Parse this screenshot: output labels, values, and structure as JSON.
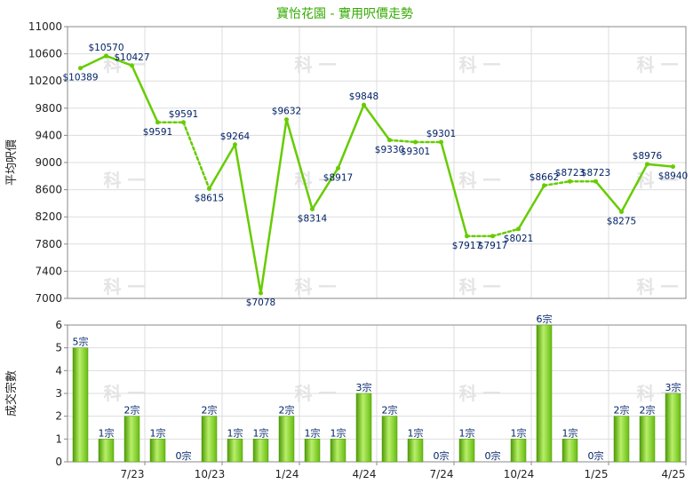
{
  "chart_data": [
    {
      "type": "line",
      "title": "寶怡花園 - 實用呎價走勢",
      "ylabel": "平均呎價",
      "xlabel": "",
      "ylim": [
        7000,
        11000
      ],
      "yticks": [
        7000,
        7400,
        7800,
        8200,
        8600,
        9000,
        9400,
        9800,
        10200,
        10600,
        11000
      ],
      "grid": true,
      "line_color": "#66cc00",
      "point_color": "#66cc00",
      "label_color": "#002266",
      "points": [
        {
          "x": 1,
          "y": 10389,
          "label": "$10389"
        },
        {
          "x": 2,
          "y": 10570,
          "label": "$10570"
        },
        {
          "x": 3,
          "y": 10427,
          "label": "$10427"
        },
        {
          "x": 4,
          "y": 9591,
          "label": "$9591"
        },
        {
          "x": 5,
          "y": 9591,
          "label": "$9591",
          "interpolated": true
        },
        {
          "x": 6,
          "y": 8615,
          "label": "$8615"
        },
        {
          "x": 7,
          "y": 9264,
          "label": "$9264"
        },
        {
          "x": 8,
          "y": 7078,
          "label": "$7078"
        },
        {
          "x": 9,
          "y": 9632,
          "label": "$9632"
        },
        {
          "x": 10,
          "y": 8314,
          "label": "$8314"
        },
        {
          "x": 11,
          "y": 8917,
          "label": "$8917"
        },
        {
          "x": 12,
          "y": 9848,
          "label": "$9848"
        },
        {
          "x": 13,
          "y": 9330,
          "label": "$9330"
        },
        {
          "x": 14,
          "y": 9301,
          "label": "$9301",
          "interpolated": true
        },
        {
          "x": 15,
          "y": 9301,
          "label": "$9301"
        },
        {
          "x": 16,
          "y": 7917,
          "label": "$7917"
        },
        {
          "x": 17,
          "y": 7917,
          "label": "$7917",
          "interpolated": true
        },
        {
          "x": 18,
          "y": 8021,
          "label": "$8021"
        },
        {
          "x": 19,
          "y": 8662,
          "label": "$8662"
        },
        {
          "x": 20,
          "y": 8723,
          "label": "$8723",
          "interpolated": true
        },
        {
          "x": 21,
          "y": 8723,
          "label": "$8723"
        },
        {
          "x": 22,
          "y": 8275,
          "label": "$8275"
        },
        {
          "x": 23,
          "y": 8976,
          "label": "$8976"
        },
        {
          "x": 24,
          "y": 8940,
          "label": "$8940"
        }
      ]
    },
    {
      "type": "bar",
      "ylabel": "成交宗數",
      "xlabel": "",
      "ylim": [
        0,
        6
      ],
      "yticks": [
        0,
        1,
        2,
        3,
        4,
        5,
        6
      ],
      "grid": true,
      "bar_color": "#66bb11",
      "label_color": "#002266",
      "categories": [
        1,
        2,
        3,
        4,
        5,
        6,
        7,
        8,
        9,
        10,
        11,
        12,
        13,
        14,
        15,
        16,
        17,
        18,
        19,
        20,
        21,
        22,
        23,
        24
      ],
      "values": [
        5,
        1,
        2,
        1,
        0,
        2,
        1,
        1,
        2,
        1,
        1,
        3,
        2,
        1,
        0,
        1,
        0,
        1,
        6,
        1,
        0,
        2,
        2,
        3
      ],
      "value_labels": [
        "5宗",
        "1宗",
        "2宗",
        "1宗",
        "0宗",
        "2宗",
        "1宗",
        "1宗",
        "2宗",
        "1宗",
        "1宗",
        "3宗",
        "2宗",
        "1宗",
        "0宗",
        "1宗",
        "0宗",
        "1宗",
        "6宗",
        "1宗",
        "0宗",
        "2宗",
        "2宗",
        "3宗"
      ],
      "x_tick_labels": [
        {
          "x": 3,
          "label": "7/23"
        },
        {
          "x": 6,
          "label": "10/23"
        },
        {
          "x": 9,
          "label": "1/24"
        },
        {
          "x": 12,
          "label": "4/24"
        },
        {
          "x": 15,
          "label": "7/24"
        },
        {
          "x": 18,
          "label": "10/24"
        },
        {
          "x": 21,
          "label": "1/25"
        },
        {
          "x": 24,
          "label": "4/25"
        }
      ]
    }
  ],
  "colors": {
    "grid": "#dddddd",
    "axis": "#888888",
    "tick_text": "#222222",
    "title_text": "#33aa00",
    "watermark": "#e4e4e4"
  },
  "watermark_text": "科 一"
}
